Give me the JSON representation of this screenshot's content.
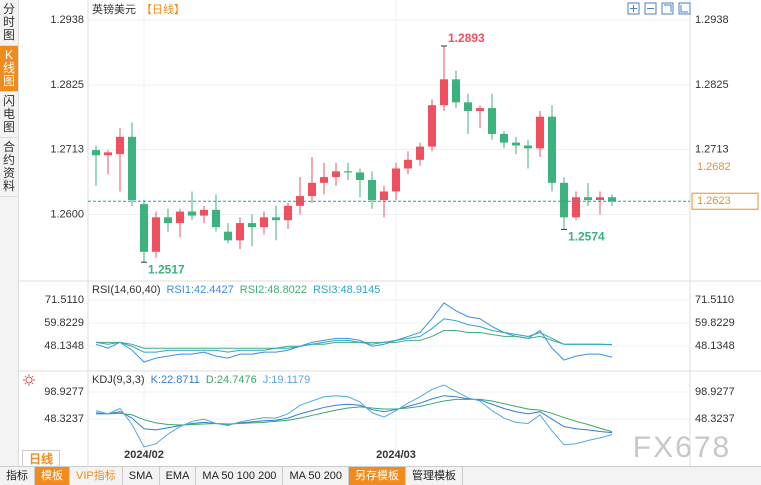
{
  "sidebar_tabs": [
    {
      "label": "分时图"
    },
    {
      "label": "K线图",
      "active": true
    },
    {
      "label": "闪电图"
    },
    {
      "label": "合约资料"
    }
  ],
  "period_tab": "日线",
  "toolbar": [
    {
      "label": "指标"
    },
    {
      "label": "模板",
      "style": "filled"
    },
    {
      "label": "VIP指标",
      "style": "accent"
    },
    {
      "label": "SMA"
    },
    {
      "label": "EMA"
    },
    {
      "label": "MA 50 100 200"
    },
    {
      "label": "MA 50 200"
    },
    {
      "label": "另存模板",
      "style": "filled"
    },
    {
      "label": "管理模板"
    }
  ],
  "watermark": "FX678",
  "chart_data": [
    {
      "type": "candlestick",
      "title": "英镑美元",
      "period_label": "【日线】",
      "categories": [
        null,
        null,
        null,
        null,
        "2024/02",
        null,
        null,
        null,
        null,
        null,
        null,
        null,
        null,
        null,
        null,
        null,
        null,
        null,
        null,
        null,
        null,
        null,
        null,
        null,
        null,
        "2024/03",
        null,
        null,
        null,
        null,
        null,
        null,
        null,
        null,
        null,
        null,
        null,
        null,
        null,
        null,
        null,
        null,
        null,
        null
      ],
      "open": [
        1.2712,
        1.2703,
        1.2705,
        1.2735,
        1.2618,
        1.2535,
        1.2595,
        1.2585,
        1.2605,
        1.2598,
        1.2608,
        1.257,
        1.2555,
        1.2585,
        1.2578,
        1.2595,
        1.259,
        1.2615,
        1.2632,
        1.2655,
        1.2665,
        1.2675,
        1.2673,
        1.266,
        1.2625,
        1.264,
        1.268,
        1.2695,
        1.2718,
        1.279,
        1.2835,
        1.2795,
        1.278,
        1.2785,
        1.274,
        1.2725,
        1.272,
        1.2715,
        1.277,
        1.2655,
        1.2595,
        1.263,
        1.2625,
        1.263
      ],
      "high": [
        1.272,
        1.2712,
        1.275,
        1.276,
        1.2625,
        1.2605,
        1.261,
        1.261,
        1.264,
        1.2615,
        1.2635,
        1.2585,
        1.2595,
        1.26,
        1.2605,
        1.2615,
        1.262,
        1.2665,
        1.27,
        1.269,
        1.269,
        1.269,
        1.268,
        1.2675,
        1.265,
        1.269,
        1.271,
        1.2725,
        1.28,
        1.2893,
        1.285,
        1.281,
        1.279,
        1.281,
        1.2745,
        1.2735,
        1.273,
        1.278,
        1.279,
        1.2665,
        1.264,
        1.2655,
        1.264,
        1.2635
      ],
      "low": [
        1.265,
        1.267,
        1.264,
        1.2615,
        1.2517,
        1.2525,
        1.257,
        1.256,
        1.259,
        1.2585,
        1.257,
        1.255,
        1.254,
        1.2545,
        1.2565,
        1.2555,
        1.2575,
        1.26,
        1.262,
        1.2635,
        1.265,
        1.266,
        1.263,
        1.261,
        1.2595,
        1.2625,
        1.267,
        1.2685,
        1.271,
        1.278,
        1.2785,
        1.274,
        1.275,
        1.273,
        1.2715,
        1.2705,
        1.268,
        1.27,
        1.264,
        1.2574,
        1.259,
        1.2615,
        1.26,
        1.2615
      ],
      "close": [
        1.2703,
        1.2708,
        1.2735,
        1.2625,
        1.2535,
        1.2595,
        1.2585,
        1.2605,
        1.2598,
        1.2608,
        1.2578,
        1.2555,
        1.2585,
        1.2578,
        1.2595,
        1.259,
        1.2615,
        1.2632,
        1.2655,
        1.2665,
        1.2675,
        1.2673,
        1.266,
        1.2625,
        1.264,
        1.268,
        1.2695,
        1.2718,
        1.279,
        1.2835,
        1.2795,
        1.278,
        1.2785,
        1.274,
        1.2725,
        1.272,
        1.2715,
        1.277,
        1.2655,
        1.2595,
        1.263,
        1.2625,
        1.263,
        1.2623
      ],
      "up_color": "#ef5060",
      "down_color": "#3cb37e",
      "ylim": [
        1.2486,
        1.2973
      ],
      "yticks": [
        1.2938,
        1.2825,
        1.2713,
        {
          "value": 1.26,
          "label": "1.2600"
        }
      ],
      "grid": true,
      "annotations": [
        {
          "index": 29,
          "value": 1.2893,
          "color": "#ef5060",
          "side": "above"
        },
        {
          "index": 4,
          "value": 1.2517,
          "color": "#3cb37e",
          "side": "below"
        },
        {
          "index": 39,
          "value": 1.2574,
          "color": "#3cb37e",
          "side": "below"
        }
      ],
      "marker_price": 1.2682,
      "marker_color": "#f08c1e",
      "last_price": 1.2623,
      "last_color": "#1f9fb0"
    },
    {
      "type": "line",
      "title": "RSI(14,60,40)",
      "series": [
        {
          "name": "RSI1:42.4427",
          "color": "#3a8ee6",
          "values": [
            49,
            47,
            50,
            46,
            40,
            42,
            43,
            44,
            44,
            45,
            43,
            42,
            44,
            44,
            45,
            45,
            46,
            48,
            50,
            51,
            52,
            52,
            51,
            48,
            49,
            51,
            53,
            55,
            62,
            70,
            66,
            63,
            62,
            58,
            55,
            53,
            52,
            56,
            47,
            41,
            43,
            44,
            44,
            42.4427
          ]
        },
        {
          "name": "RSI2:48.8022",
          "color": "#3fae78",
          "values": [
            50,
            50,
            50,
            49,
            47,
            47,
            47,
            47,
            47,
            47,
            47,
            47,
            47,
            47,
            47,
            47,
            48,
            48,
            49,
            49,
            50,
            50,
            50,
            50,
            50,
            50,
            51,
            51,
            53,
            56,
            56,
            55,
            55,
            54,
            53,
            53,
            52,
            53,
            51,
            49,
            49,
            49,
            49,
            48.8022
          ]
        },
        {
          "name": "RSI3:48.9145",
          "color": "#2aa6c8",
          "values": [
            50,
            49,
            50,
            48,
            45,
            45,
            46,
            46,
            46,
            46,
            46,
            45,
            46,
            46,
            46,
            47,
            47,
            48,
            49,
            50,
            51,
            51,
            50,
            49,
            50,
            51,
            52,
            53,
            57,
            62,
            61,
            59,
            58,
            56,
            55,
            54,
            53,
            55,
            52,
            49,
            49,
            49,
            49,
            48.9145
          ]
        }
      ],
      "ylim": [
        35.94,
        80.66
      ],
      "yticks": [
        {
          "value": 71.511,
          "label": "71.5110"
        },
        59.8229,
        48.1348
      ]
    },
    {
      "type": "line",
      "title": "KDJ(9,3,3)",
      "series": [
        {
          "name": "K:22.8711",
          "color": "#2f7fd8",
          "values": [
            60,
            58,
            62,
            50,
            30,
            28,
            32,
            36,
            40,
            42,
            40,
            38,
            41,
            43,
            45,
            46,
            50,
            58,
            64,
            70,
            74,
            76,
            74,
            66,
            62,
            66,
            72,
            78,
            86,
            92,
            90,
            86,
            84,
            76,
            68,
            62,
            58,
            62,
            48,
            34,
            30,
            28,
            25,
            22.8711
          ]
        },
        {
          "name": "D:24.7476",
          "color": "#3aa86b",
          "values": [
            58,
            58,
            59,
            56,
            47,
            41,
            38,
            37,
            38,
            39,
            40,
            39,
            40,
            41,
            42,
            44,
            46,
            50,
            55,
            60,
            65,
            69,
            71,
            69,
            67,
            67,
            69,
            72,
            77,
            82,
            85,
            85,
            85,
            82,
            77,
            72,
            67,
            65,
            59,
            51,
            44,
            38,
            31,
            24.7476
          ]
        },
        {
          "name": "J:19.1179",
          "color": "#56a8e0",
          "values": [
            64,
            58,
            68,
            38,
            -4,
            2,
            20,
            34,
            44,
            48,
            40,
            36,
            43,
            47,
            51,
            50,
            58,
            74,
            82,
            90,
            92,
            90,
            80,
            60,
            52,
            64,
            78,
            90,
            104,
            112,
            100,
            88,
            82,
            64,
            50,
            42,
            40,
            56,
            26,
            0,
            2,
            8,
            13,
            19.1179
          ]
        }
      ],
      "ylim": [
        -28.5,
        136.4
      ],
      "yticks": [
        98.9277,
        48.3237
      ]
    }
  ]
}
